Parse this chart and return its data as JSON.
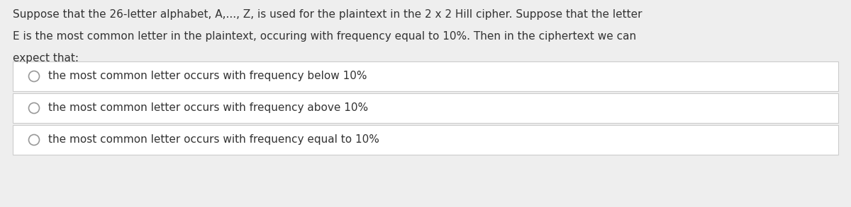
{
  "background_color": "#eeeeee",
  "option_bg": "#ffffff",
  "border_color": "#cccccc",
  "text_color": "#333333",
  "option_text_color": "#333333",
  "circle_color": "#999999",
  "header_text_line1": "Suppose that the 26-letter alphabet, A,..., Z, is used for the plaintext in the 2 x 2 Hill cipher. Suppose that the letter",
  "header_text_line2": "E is the most common letter in the plaintext, occuring with frequency equal to 10%. Then in the ciphertext we can",
  "header_text_line3": "expect that:",
  "options": [
    "the most common letter occurs with frequency below 10%",
    "the most common letter occurs with frequency above 10%",
    "the most common letter occurs with frequency equal to 10%"
  ],
  "font_size_header": 11.0,
  "font_size_option": 11.0,
  "fig_width": 12.0,
  "fig_height": 2.93,
  "dpi": 100
}
